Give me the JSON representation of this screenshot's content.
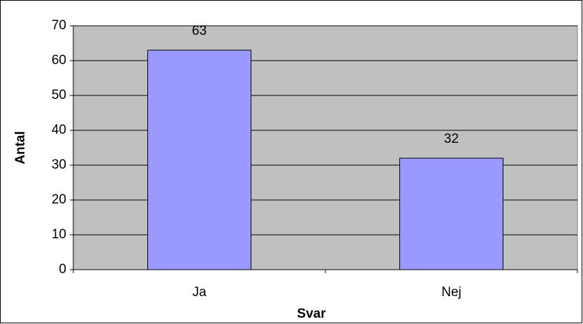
{
  "chart_data": {
    "type": "bar",
    "x_label": "Svar",
    "y_label": "Antal",
    "categories": [
      "Ja",
      "Nej"
    ],
    "values": [
      63,
      32
    ],
    "color": "#9999ff",
    "ylim": [
      0,
      70
    ],
    "yticks": [
      0,
      10,
      20,
      30,
      40,
      50,
      60,
      70
    ],
    "grid": true,
    "data_labels": true
  }
}
